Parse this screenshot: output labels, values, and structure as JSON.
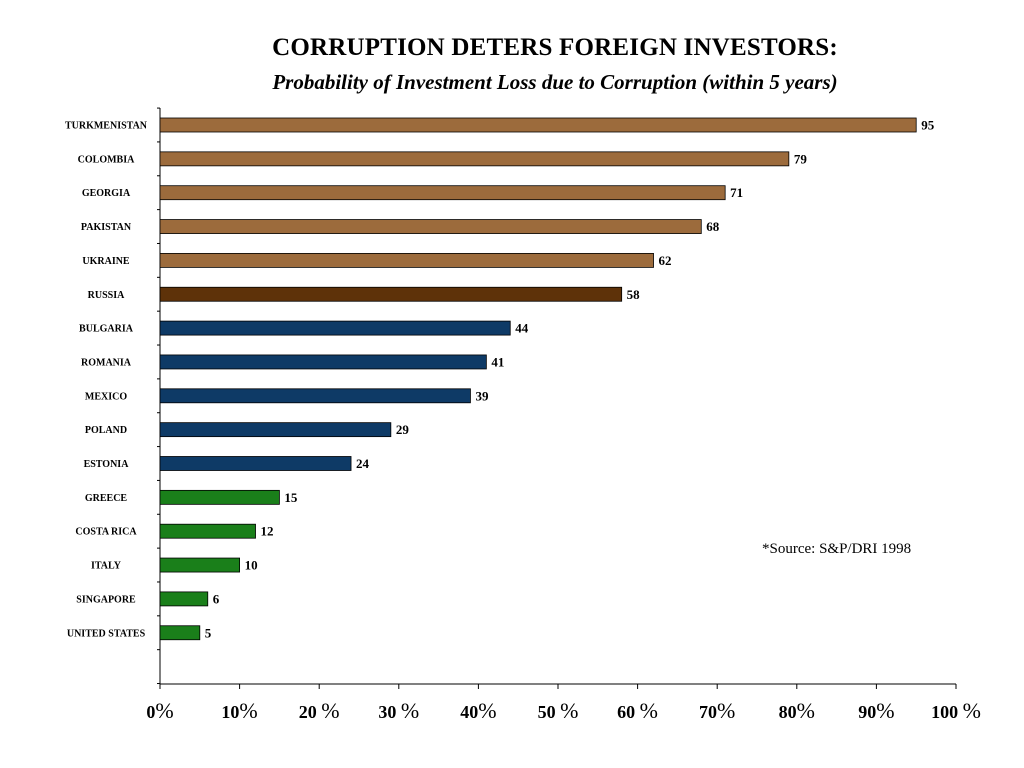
{
  "chart_data": {
    "type": "bar",
    "orientation": "horizontal",
    "title": "CORRUPTION DETERS FOREIGN INVESTORS:",
    "subtitle": "Probability of Investment Loss due to Corruption (within 5 years)",
    "categories": [
      "TURKMENISTAN",
      "COLOMBIA",
      "GEORGIA",
      "PAKISTAN",
      "UKRAINE",
      "RUSSIA",
      "BULGARIA",
      "ROMANIA",
      "MEXICO",
      "POLAND",
      "ESTONIA",
      "GREECE",
      "COSTA RICA",
      "ITALY",
      "SINGAPORE",
      "UNITED STATES"
    ],
    "values": [
      95,
      79,
      71,
      68,
      62,
      58,
      44,
      41,
      39,
      29,
      24,
      15,
      12,
      10,
      6,
      5
    ],
    "bar_colors": [
      "#9C6B3C",
      "#9C6B3C",
      "#9C6B3C",
      "#9C6B3C",
      "#9C6B3C",
      "#5E3209",
      "#0E3A66",
      "#0E3A66",
      "#0E3A66",
      "#0E3A66",
      "#0E3A66",
      "#1A7F1A",
      "#1A7F1A",
      "#1A7F1A",
      "#1A7F1A",
      "#1A7F1A"
    ],
    "xlim": [
      0,
      100
    ],
    "x_ticks": [
      {
        "num": "0",
        "pct": "%"
      },
      {
        "num": "10",
        "pct": "%"
      },
      {
        "num": "20 ",
        "pct": "%"
      },
      {
        "num": "30 ",
        "pct": "%"
      },
      {
        "num": "40",
        "pct": "%"
      },
      {
        "num": "50 ",
        "pct": "%"
      },
      {
        "num": "60 ",
        "pct": "%"
      },
      {
        "num": "70",
        "pct": "%"
      },
      {
        "num": "80",
        "pct": "%"
      },
      {
        "num": "90",
        "pct": "%"
      },
      {
        "num": "100 ",
        "pct": "%"
      }
    ],
    "annotation": "*Source: S&P/DRI 1998",
    "grid": false,
    "legend": "none"
  }
}
